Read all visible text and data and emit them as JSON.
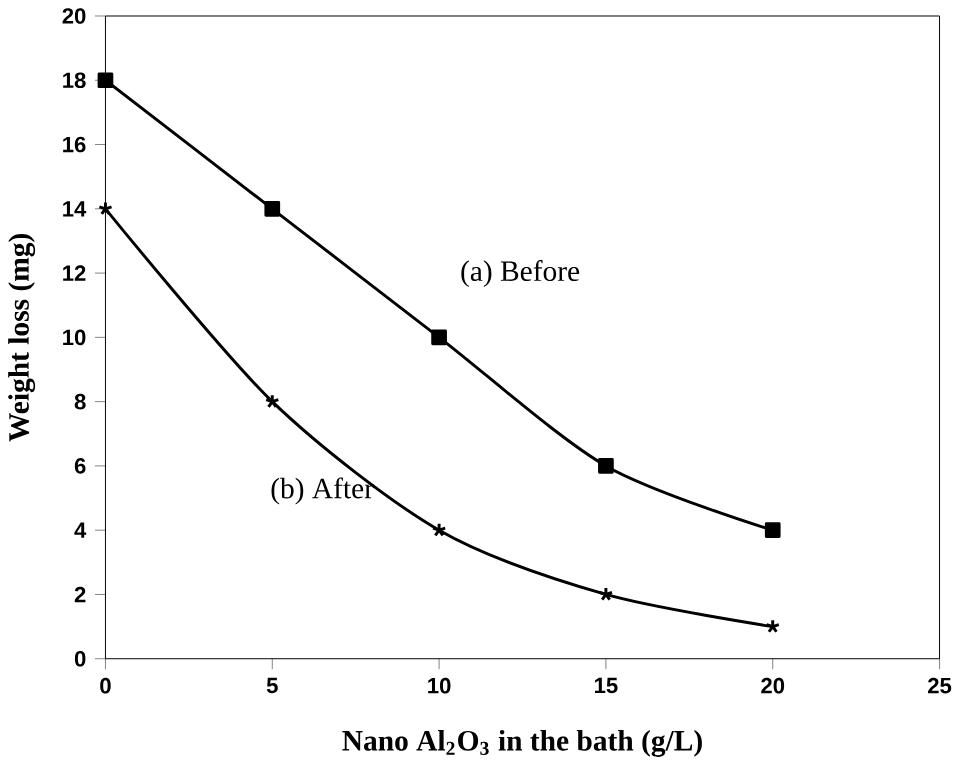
{
  "chart_data": {
    "type": "line",
    "xlabel": "Nano Al$_{2}$O$_{3}$ in the bath (g/L)",
    "ylabel": "Weight loss (mg)",
    "x": [
      0,
      5,
      10,
      15,
      20
    ],
    "series": [
      {
        "name": "(a) Before",
        "color": "#000000",
        "marker": "square",
        "values": [
          18,
          14,
          10,
          6,
          4
        ]
      },
      {
        "name": "(b) After",
        "color": "#000000",
        "marker": "cross",
        "values": [
          14,
          8,
          4,
          2,
          1
        ]
      }
    ],
    "xlim": [
      0,
      25
    ],
    "ylim": [
      0,
      20
    ],
    "xticks": [
      0,
      5,
      10,
      15,
      20,
      25
    ],
    "yticks": [
      0,
      2,
      4,
      6,
      8,
      10,
      12,
      14,
      16,
      18,
      20
    ],
    "grid": false,
    "line_style": "solid"
  }
}
